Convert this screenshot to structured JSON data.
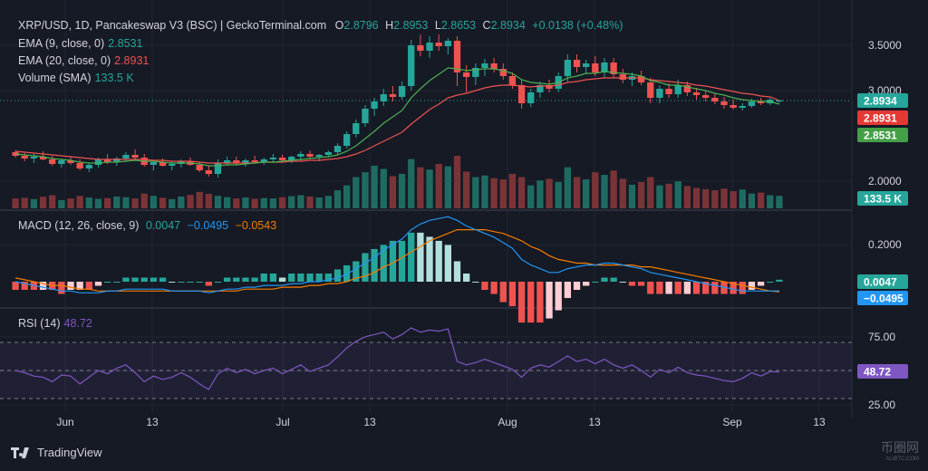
{
  "header": {
    "symbol": "XRP/USD, 1D, Pancakeswap V3 (BSC) | GeckoTerminal.com",
    "o_label": "O",
    "o": "2.8796",
    "h_label": "H",
    "h": "2.8953",
    "l_label": "L",
    "l": "2.8653",
    "c_label": "C",
    "c": "2.8934",
    "change": "+0.0138 (+0.48%)"
  },
  "legend": {
    "ema9_label": "EMA (9, close, 0)",
    "ema9_value": "2.8531",
    "ema20_label": "EMA (20, close, 0)",
    "ema20_value": "2.8931",
    "volume_label": "Volume (SMA)",
    "volume_value": "133.5 K",
    "macd_label": "MACD (12, 26, close, 9)",
    "macd_value": "0.0047",
    "macd_line_value": "−0.0495",
    "macd_signal_value": "−0.0543",
    "rsi_label": "RSI (14)",
    "rsi_value": "48.72"
  },
  "colors": {
    "background": "#161a25",
    "grid": "#232632",
    "up": "#26a69a",
    "down": "#ef5350",
    "ema9": "#4caf50",
    "ema20": "#ef5350",
    "macd": "#2196f3",
    "signal": "#f57c00",
    "rsi": "#7e57c2"
  },
  "brand": {
    "name": "TradingView",
    "watermark": "币圈网",
    "watermark_sub": "ALIBTC.COM"
  },
  "chart_data": [
    {
      "type": "candlestick",
      "title": "XRP/USD, 1D",
      "x_labels": [
        "Jun",
        "13",
        "Jul",
        "13",
        "Aug",
        "13",
        "Sep",
        "13"
      ],
      "price_ticks": [
        "3.5000",
        "3.0000",
        "2.0000"
      ],
      "price_badges": [
        "2.8934",
        "2.8931",
        "2.8531"
      ],
      "volume_badge": "133.5 K",
      "ohlc_approx": [
        [
          2.32,
          2.34,
          2.26,
          2.28
        ],
        [
          2.28,
          2.31,
          2.22,
          2.25
        ],
        [
          2.25,
          2.3,
          2.2,
          2.27
        ],
        [
          2.27,
          2.33,
          2.23,
          2.24
        ],
        [
          2.24,
          2.28,
          2.17,
          2.19
        ],
        [
          2.19,
          2.25,
          2.15,
          2.23
        ],
        [
          2.23,
          2.27,
          2.18,
          2.2
        ],
        [
          2.2,
          2.24,
          2.12,
          2.14
        ],
        [
          2.14,
          2.2,
          2.1,
          2.18
        ],
        [
          2.18,
          2.26,
          2.15,
          2.24
        ],
        [
          2.24,
          2.3,
          2.19,
          2.21
        ],
        [
          2.21,
          2.27,
          2.17,
          2.25
        ],
        [
          2.25,
          2.32,
          2.21,
          2.29
        ],
        [
          2.29,
          2.35,
          2.24,
          2.26
        ],
        [
          2.26,
          2.3,
          2.16,
          2.18
        ],
        [
          2.18,
          2.23,
          2.12,
          2.21
        ],
        [
          2.21,
          2.25,
          2.16,
          2.17
        ],
        [
          2.17,
          2.22,
          2.12,
          2.19
        ],
        [
          2.19,
          2.24,
          2.15,
          2.22
        ],
        [
          2.22,
          2.26,
          2.17,
          2.18
        ],
        [
          2.18,
          2.21,
          2.1,
          2.12
        ],
        [
          2.12,
          2.17,
          2.05,
          2.08
        ],
        [
          2.08,
          2.24,
          2.04,
          2.2
        ],
        [
          2.2,
          2.27,
          2.17,
          2.23
        ],
        [
          2.23,
          2.27,
          2.18,
          2.2
        ],
        [
          2.2,
          2.25,
          2.16,
          2.23
        ],
        [
          2.23,
          2.28,
          2.19,
          2.21
        ],
        [
          2.21,
          2.26,
          2.18,
          2.24
        ],
        [
          2.24,
          2.3,
          2.2,
          2.26
        ],
        [
          2.26,
          2.29,
          2.21,
          2.23
        ],
        [
          2.23,
          2.28,
          2.2,
          2.27
        ],
        [
          2.27,
          2.33,
          2.23,
          2.3
        ],
        [
          2.3,
          2.34,
          2.25,
          2.27
        ],
        [
          2.27,
          2.3,
          2.22,
          2.29
        ],
        [
          2.29,
          2.34,
          2.26,
          2.32
        ],
        [
          2.32,
          2.42,
          2.29,
          2.39
        ],
        [
          2.39,
          2.55,
          2.36,
          2.52
        ],
        [
          2.52,
          2.68,
          2.48,
          2.64
        ],
        [
          2.64,
          2.84,
          2.6,
          2.8
        ],
        [
          2.8,
          2.92,
          2.72,
          2.88
        ],
        [
          2.88,
          3.02,
          2.83,
          2.96
        ],
        [
          2.96,
          3.05,
          2.88,
          2.93
        ],
        [
          2.93,
          3.1,
          2.9,
          3.05
        ],
        [
          3.05,
          3.56,
          3.0,
          3.5
        ],
        [
          3.5,
          3.62,
          3.38,
          3.44
        ],
        [
          3.44,
          3.6,
          3.36,
          3.53
        ],
        [
          3.53,
          3.62,
          3.44,
          3.49
        ],
        [
          3.49,
          3.58,
          3.4,
          3.55
        ],
        [
          3.55,
          3.6,
          3.05,
          3.2
        ],
        [
          3.2,
          3.28,
          2.98,
          3.15
        ],
        [
          3.15,
          3.3,
          3.06,
          3.25
        ],
        [
          3.25,
          3.35,
          3.16,
          3.3
        ],
        [
          3.3,
          3.36,
          3.2,
          3.24
        ],
        [
          3.24,
          3.3,
          3.12,
          3.16
        ],
        [
          3.16,
          3.2,
          3.02,
          3.06
        ],
        [
          3.06,
          3.12,
          2.8,
          2.86
        ],
        [
          2.86,
          3.02,
          2.82,
          2.98
        ],
        [
          2.98,
          3.1,
          2.92,
          3.06
        ],
        [
          3.06,
          3.12,
          2.98,
          3.02
        ],
        [
          3.02,
          3.2,
          2.98,
          3.16
        ],
        [
          3.16,
          3.4,
          3.1,
          3.34
        ],
        [
          3.34,
          3.4,
          3.2,
          3.26
        ],
        [
          3.26,
          3.34,
          3.18,
          3.3
        ],
        [
          3.3,
          3.38,
          3.16,
          3.2
        ],
        [
          3.2,
          3.36,
          3.14,
          3.31
        ],
        [
          3.31,
          3.36,
          3.14,
          3.18
        ],
        [
          3.18,
          3.24,
          3.08,
          3.12
        ],
        [
          3.12,
          3.2,
          3.05,
          3.16
        ],
        [
          3.16,
          3.22,
          3.06,
          3.09
        ],
        [
          3.09,
          3.14,
          2.86,
          2.92
        ],
        [
          2.92,
          3.06,
          2.86,
          3.02
        ],
        [
          3.02,
          3.08,
          2.92,
          2.96
        ],
        [
          2.96,
          3.12,
          2.92,
          3.06
        ],
        [
          3.06,
          3.1,
          2.94,
          2.98
        ],
        [
          2.98,
          3.03,
          2.9,
          2.95
        ],
        [
          2.95,
          3.0,
          2.88,
          2.92
        ],
        [
          2.92,
          2.97,
          2.85,
          2.88
        ],
        [
          2.88,
          2.93,
          2.8,
          2.84
        ],
        [
          2.84,
          2.9,
          2.79,
          2.81
        ],
        [
          2.81,
          2.86,
          2.78,
          2.83
        ],
        [
          2.83,
          2.91,
          2.81,
          2.88
        ],
        [
          2.88,
          2.92,
          2.84,
          2.86
        ],
        [
          2.86,
          2.92,
          2.84,
          2.9
        ],
        [
          2.8796,
          2.8953,
          2.8653,
          2.8934
        ]
      ],
      "volume_approx": [
        30,
        32,
        28,
        35,
        40,
        25,
        30,
        38,
        33,
        29,
        31,
        36,
        34,
        30,
        45,
        38,
        32,
        28,
        36,
        41,
        50,
        44,
        38,
        34,
        30,
        33,
        29,
        31,
        30,
        34,
        37,
        40,
        36,
        33,
        38,
        55,
        70,
        95,
        110,
        130,
        120,
        98,
        105,
        150,
        125,
        118,
        135,
        128,
        160,
        112,
        95,
        100,
        92,
        88,
        105,
        95,
        70,
        85,
        90,
        80,
        125,
        95,
        88,
        110,
        102,
        115,
        90,
        72,
        80,
        95,
        70,
        75,
        82,
        68,
        62,
        58,
        55,
        60,
        52,
        57,
        45,
        48,
        40,
        38
      ],
      "ema9": [
        2.3,
        2.29,
        2.28,
        2.27,
        2.25,
        2.24,
        2.23,
        2.21,
        2.2,
        2.2,
        2.21,
        2.21,
        2.22,
        2.23,
        2.22,
        2.22,
        2.21,
        2.2,
        2.2,
        2.2,
        2.19,
        2.17,
        2.17,
        2.18,
        2.18,
        2.19,
        2.2,
        2.21,
        2.21,
        2.22,
        2.23,
        2.24,
        2.25,
        2.26,
        2.27,
        2.29,
        2.33,
        2.39,
        2.47,
        2.55,
        2.64,
        2.71,
        2.78,
        2.92,
        3.02,
        3.11,
        3.18,
        3.25,
        3.24,
        3.22,
        3.23,
        3.24,
        3.24,
        3.22,
        3.19,
        3.12,
        3.09,
        3.08,
        3.07,
        3.09,
        3.14,
        3.16,
        3.19,
        3.19,
        3.21,
        3.2,
        3.19,
        3.18,
        3.16,
        3.11,
        3.09,
        3.06,
        3.06,
        3.04,
        3.02,
        3.0,
        2.97,
        2.95,
        2.92,
        2.9,
        2.89,
        2.88,
        2.88,
        2.85
      ],
      "ema20": [
        2.33,
        2.32,
        2.31,
        2.3,
        2.29,
        2.28,
        2.27,
        2.26,
        2.25,
        2.24,
        2.24,
        2.24,
        2.24,
        2.24,
        2.24,
        2.23,
        2.23,
        2.22,
        2.22,
        2.22,
        2.21,
        2.2,
        2.2,
        2.2,
        2.2,
        2.2,
        2.2,
        2.21,
        2.21,
        2.21,
        2.22,
        2.22,
        2.23,
        2.23,
        2.24,
        2.25,
        2.27,
        2.3,
        2.34,
        2.39,
        2.44,
        2.49,
        2.54,
        2.63,
        2.71,
        2.79,
        2.85,
        2.92,
        2.95,
        2.97,
        3.0,
        3.03,
        3.05,
        3.06,
        3.06,
        3.05,
        3.04,
        3.05,
        3.05,
        3.06,
        3.09,
        3.1,
        3.12,
        3.13,
        3.14,
        3.14,
        3.14,
        3.14,
        3.14,
        3.12,
        3.11,
        3.1,
        3.09,
        3.08,
        3.06,
        3.05,
        3.03,
        3.01,
        2.99,
        2.97,
        2.96,
        2.94,
        2.93,
        2.89
      ]
    },
    {
      "type": "line",
      "title": "MACD (12, 26, close, 9)",
      "y_ticks": [
        "0.2000"
      ],
      "y_badges": [
        "0.0047",
        "−0.0495"
      ],
      "macd_approx": [
        0.0,
        -0.01,
        -0.02,
        -0.03,
        -0.04,
        -0.05,
        -0.05,
        -0.06,
        -0.06,
        -0.06,
        -0.05,
        -0.05,
        -0.04,
        -0.04,
        -0.04,
        -0.04,
        -0.04,
        -0.05,
        -0.05,
        -0.05,
        -0.05,
        -0.06,
        -0.05,
        -0.04,
        -0.04,
        -0.03,
        -0.03,
        -0.02,
        -0.02,
        -0.02,
        -0.01,
        -0.01,
        0.0,
        0.0,
        0.01,
        0.02,
        0.04,
        0.07,
        0.1,
        0.13,
        0.17,
        0.2,
        0.23,
        0.28,
        0.31,
        0.33,
        0.34,
        0.35,
        0.33,
        0.3,
        0.28,
        0.26,
        0.24,
        0.21,
        0.18,
        0.12,
        0.09,
        0.07,
        0.05,
        0.05,
        0.07,
        0.08,
        0.09,
        0.09,
        0.1,
        0.1,
        0.09,
        0.08,
        0.07,
        0.05,
        0.04,
        0.03,
        0.02,
        0.01,
        0.0,
        -0.01,
        -0.02,
        -0.03,
        -0.04,
        -0.05,
        -0.05,
        -0.05,
        -0.05,
        -0.0495
      ],
      "signal_approx": [
        0.02,
        0.01,
        0.0,
        -0.01,
        -0.02,
        -0.02,
        -0.03,
        -0.04,
        -0.04,
        -0.05,
        -0.05,
        -0.05,
        -0.05,
        -0.05,
        -0.05,
        -0.05,
        -0.05,
        -0.05,
        -0.05,
        -0.05,
        -0.05,
        -0.05,
        -0.05,
        -0.05,
        -0.05,
        -0.04,
        -0.04,
        -0.04,
        -0.04,
        -0.03,
        -0.03,
        -0.03,
        -0.02,
        -0.02,
        -0.01,
        -0.01,
        0.0,
        0.02,
        0.03,
        0.05,
        0.08,
        0.1,
        0.13,
        0.16,
        0.19,
        0.22,
        0.24,
        0.26,
        0.28,
        0.28,
        0.28,
        0.28,
        0.27,
        0.26,
        0.24,
        0.22,
        0.19,
        0.17,
        0.14,
        0.12,
        0.11,
        0.1,
        0.1,
        0.09,
        0.09,
        0.09,
        0.09,
        0.09,
        0.08,
        0.08,
        0.07,
        0.06,
        0.05,
        0.04,
        0.03,
        0.02,
        0.01,
        0.0,
        -0.01,
        -0.02,
        -0.03,
        -0.04,
        -0.05,
        -0.0543
      ]
    },
    {
      "type": "line",
      "title": "RSI (14)",
      "y_ticks": [
        "75.00",
        "25.00"
      ],
      "y_badge": "48.72",
      "rsi_approx": [
        50,
        48,
        45,
        44,
        40,
        46,
        45,
        38,
        44,
        50,
        47,
        52,
        55,
        48,
        40,
        45,
        42,
        44,
        48,
        44,
        38,
        33,
        47,
        52,
        48,
        51,
        47,
        50,
        52,
        47,
        51,
        55,
        49,
        52,
        55,
        62,
        70,
        76,
        80,
        82,
        84,
        78,
        82,
        88,
        84,
        86,
        85,
        87,
        58,
        55,
        57,
        60,
        57,
        54,
        51,
        44,
        52,
        55,
        53,
        58,
        63,
        58,
        60,
        56,
        60,
        55,
        52,
        55,
        50,
        44,
        51,
        48,
        53,
        48,
        46,
        45,
        43,
        41,
        40,
        43,
        48,
        45,
        49,
        48.72
      ]
    }
  ]
}
